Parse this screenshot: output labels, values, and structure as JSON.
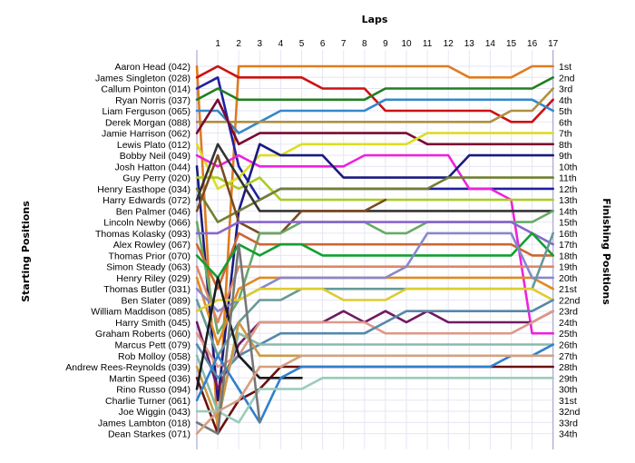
{
  "chart_data": {
    "type": "line",
    "title": "Laps",
    "ylabel_left": "Starting Positions",
    "ylabel_right": "Finishing Positions",
    "laps": [
      "1",
      "2",
      "3",
      "4",
      "5",
      "6",
      "7",
      "8",
      "9",
      "10",
      "11",
      "12",
      "13",
      "14",
      "15",
      "16",
      "17"
    ],
    "drivers": [
      "Aaron Head (042)",
      "James Singleton (028)",
      "Callum Pointon (014)",
      "Ryan Norris (037)",
      "Liam Ferguson (065)",
      "Derek Morgan (088)",
      "Jamie Harrison (062)",
      "Lewis Plato (012)",
      "Bobby Neil (049)",
      "Josh Hatton (044)",
      "Guy Perry (020)",
      "Henry Easthope (034)",
      "Harry Edwards (072)",
      "Ben Palmer (046)",
      "Lincoln Newby (066)",
      "Thomas Kolasky (093)",
      "Alex Rowley (067)",
      "Thomas Prior (070)",
      "Simon Steady (063)",
      "Henry Riley (029)",
      "Thomas Butler (031)",
      "Ben Slater (089)",
      "William Maddison (085)",
      "Harry Smith (045)",
      "Graham Roberts (060)",
      "Marcus Pett (079)",
      "Rob Molloy (058)",
      "Andrew Rees-Reynolds (039)",
      "Martin Speed (036)",
      "Rino Russo (094)",
      "Charlie Turner (061)",
      "Joe Wiggin (043)",
      "James Lambton (018)",
      "Dean Starkes (071)"
    ],
    "finishing_positions": [
      "1st",
      "2nd",
      "3rd",
      "4th",
      "5th",
      "6th",
      "7th",
      "8th",
      "9th",
      "10th",
      "11th",
      "12th",
      "13th",
      "14th",
      "15th",
      "16th",
      "17th",
      "18th",
      "19th",
      "20th",
      "21st",
      "22nd",
      "23rd",
      "24th",
      "25th",
      "26th",
      "27th",
      "28th",
      "29th",
      "30th",
      "31st",
      "32nd",
      "33rd",
      "34th"
    ],
    "ylim": [
      1,
      34
    ],
    "grid": true,
    "series": [
      {
        "color": "#e07b20",
        "positions": [
          34,
          1,
          1,
          1,
          1,
          1,
          1,
          1,
          1,
          1,
          1,
          1,
          2,
          2,
          2,
          1,
          1
        ]
      },
      {
        "color": "#cc1111",
        "positions": [
          1,
          2,
          2,
          2,
          2,
          3,
          3,
          3,
          5,
          5,
          5,
          5,
          5,
          5,
          6,
          6,
          4
        ]
      },
      {
        "color": "#2020a0",
        "positions": [
          2,
          10,
          13,
          12,
          12,
          12,
          12,
          12,
          12,
          12,
          12,
          12,
          12,
          12,
          12,
          12,
          12
        ]
      },
      {
        "color": "#208020",
        "positions": [
          3,
          4,
          4,
          4,
          4,
          4,
          4,
          4,
          3,
          3,
          3,
          3,
          3,
          3,
          3,
          3,
          2
        ]
      },
      {
        "color": "#3388cc",
        "positions": [
          5,
          7,
          6,
          5,
          5,
          5,
          5,
          5,
          4,
          4,
          4,
          4,
          4,
          4,
          4,
          4,
          5
        ]
      },
      {
        "color": "#b09040",
        "positions": [
          6,
          6,
          6,
          6,
          6,
          6,
          6,
          6,
          6,
          6,
          6,
          6,
          6,
          6,
          5,
          5,
          3
        ]
      },
      {
        "color": "#7a0a30",
        "positions": [
          4,
          8,
          7,
          7,
          7,
          7,
          7,
          7,
          7,
          7,
          8,
          8,
          8,
          8,
          8,
          8,
          8
        ]
      },
      {
        "color": "#dddd22",
        "positions": [
          12,
          11,
          9,
          9,
          8,
          8,
          8,
          8,
          8,
          8,
          7,
          7,
          7,
          7,
          7,
          7,
          7
        ]
      },
      {
        "color": "#ee22dd",
        "positions": [
          10,
          9,
          10,
          10,
          10,
          10,
          10,
          9,
          9,
          9,
          9,
          9,
          12,
          12,
          13,
          25,
          25
        ]
      },
      {
        "color": "#1a1a80",
        "positions": [
          31,
          14,
          8,
          9,
          9,
          9,
          11,
          11,
          11,
          11,
          11,
          11,
          9,
          9,
          9,
          9,
          9
        ]
      },
      {
        "color": "#aacc22",
        "positions": [
          11,
          12,
          11,
          13,
          13,
          13,
          13,
          13,
          13,
          13,
          13,
          13,
          13,
          13,
          13,
          13,
          13
        ]
      },
      {
        "color": "#708030",
        "positions": [
          15,
          14,
          13,
          12,
          12,
          12,
          12,
          12,
          12,
          12,
          12,
          11,
          11,
          11,
          11,
          11,
          11
        ]
      },
      {
        "color": "#333333",
        "positions": [
          8,
          11,
          14,
          14,
          14,
          14,
          14,
          14,
          14,
          14,
          14,
          14,
          14,
          14,
          14,
          14,
          14
        ]
      },
      {
        "color": "#7a4a20",
        "positions": [
          9,
          15,
          16,
          16,
          14,
          14,
          14,
          14,
          13,
          null,
          null,
          null,
          null,
          null,
          null,
          null,
          null
        ]
      },
      {
        "color": "#66aa66",
        "positions": [
          25,
          22,
          16,
          16,
          15,
          15,
          15,
          15,
          16,
          16,
          15,
          15,
          15,
          15,
          15,
          15,
          14
        ]
      },
      {
        "color": "#8866cc",
        "positions": [
          16,
          15,
          15,
          15,
          15,
          15,
          15,
          15,
          15,
          15,
          15,
          15,
          15,
          15,
          15,
          16,
          17
        ]
      },
      {
        "color": "#cc6633",
        "positions": [
          21,
          16,
          17,
          17,
          17,
          17,
          17,
          17,
          17,
          17,
          17,
          17,
          17,
          17,
          17,
          18,
          18
        ]
      },
      {
        "color": "#10a030",
        "positions": [
          20,
          17,
          18,
          17,
          17,
          18,
          18,
          18,
          18,
          18,
          18,
          18,
          18,
          18,
          18,
          16,
          18
        ]
      },
      {
        "color": "#dd8866",
        "positions": [
          24,
          19,
          19,
          19,
          19,
          19,
          19,
          19,
          19,
          19,
          19,
          19,
          19,
          19,
          19,
          19,
          19
        ]
      },
      {
        "color": "#e08a20",
        "positions": [
          26,
          21,
          20,
          20,
          20,
          20,
          20,
          20,
          20,
          20,
          20,
          20,
          20,
          20,
          20,
          20,
          21
        ]
      },
      {
        "color": "#8888cc",
        "positions": [
          23,
          22,
          21,
          20,
          20,
          20,
          20,
          20,
          20,
          19,
          16,
          16,
          16,
          16,
          16,
          20,
          20
        ]
      },
      {
        "color": "#669999",
        "positions": [
          27,
          24,
          22,
          22,
          21,
          21,
          21,
          21,
          21,
          21,
          21,
          21,
          21,
          21,
          21,
          21,
          16
        ]
      },
      {
        "color": "#ddcc33",
        "positions": [
          22,
          22,
          21,
          21,
          21,
          21,
          22,
          22,
          22,
          21,
          21,
          21,
          21,
          21,
          21,
          21,
          22
        ]
      },
      {
        "color": "#701a60",
        "positions": [
          30,
          26,
          24,
          24,
          24,
          24,
          23,
          24,
          23,
          24,
          23,
          24,
          24,
          24,
          24,
          24,
          23
        ]
      },
      {
        "color": "#dd9988",
        "positions": [
          28,
          27,
          24,
          24,
          24,
          24,
          24,
          24,
          25,
          25,
          25,
          25,
          25,
          25,
          25,
          24,
          23
        ]
      },
      {
        "color": "#5588aa",
        "positions": [
          29,
          27,
          26,
          25,
          25,
          25,
          25,
          25,
          24,
          23,
          23,
          23,
          23,
          23,
          23,
          23,
          22
        ]
      },
      {
        "color": "#88bbaa",
        "positions": [
          32,
          25,
          26,
          26,
          26,
          26,
          26,
          26,
          26,
          26,
          26,
          26,
          26,
          26,
          26,
          26,
          26
        ]
      },
      {
        "color": "#cc9944",
        "positions": [
          33,
          24,
          27,
          27,
          27,
          null,
          null,
          null,
          null,
          null,
          null,
          null,
          null,
          null,
          null,
          null,
          null
        ]
      },
      {
        "color": "#6a1010",
        "positions": [
          34,
          31,
          30,
          28,
          28,
          28,
          28,
          28,
          28,
          28,
          28,
          28,
          28,
          28,
          28,
          28,
          28
        ]
      },
      {
        "color": "#1a1a20",
        "positions": [
          20,
          27,
          29,
          29,
          29,
          null,
          null,
          null,
          null,
          null,
          null,
          null,
          null,
          null,
          null,
          null,
          null
        ]
      },
      {
        "color": "#3080cc",
        "positions": [
          27,
          30,
          33,
          29,
          28,
          28,
          28,
          28,
          28,
          28,
          28,
          28,
          28,
          28,
          27,
          27,
          26
        ]
      },
      {
        "color": "#99ccbb",
        "positions": [
          32,
          33,
          30,
          30,
          30,
          29,
          29,
          29,
          29,
          29,
          29,
          29,
          29,
          29,
          29,
          29,
          29
        ]
      },
      {
        "color": "#777777",
        "positions": [
          34,
          17,
          33,
          null,
          null,
          null,
          null,
          null,
          null,
          null,
          null,
          null,
          null,
          null,
          null,
          null,
          null
        ]
      },
      {
        "color": "#d4a080",
        "positions": [
          32,
          31,
          28,
          28,
          27,
          27,
          27,
          27,
          27,
          27,
          27,
          27,
          27,
          27,
          27,
          27,
          27
        ]
      }
    ]
  }
}
